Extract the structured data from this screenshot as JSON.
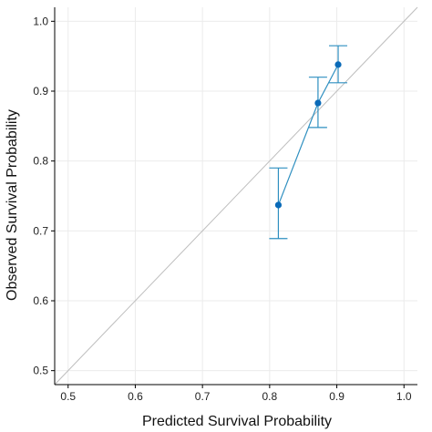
{
  "chart_data": {
    "type": "scatter",
    "xlabel": "Predicted Survival Probability",
    "ylabel": "Observed Survival Probability",
    "xlim": [
      0.48,
      1.02
    ],
    "ylim": [
      0.48,
      1.02
    ],
    "x_ticks": [
      0.5,
      0.6,
      0.7,
      0.8,
      0.9,
      1.0
    ],
    "x_tick_labels": [
      "0.5",
      "0.6",
      "0.7",
      "0.8",
      "0.9",
      "1.0"
    ],
    "y_ticks": [
      0.5,
      0.6,
      0.7,
      0.8,
      0.9,
      1.0
    ],
    "y_tick_labels": [
      "0.5",
      "0.6",
      "0.7",
      "0.8",
      "0.9",
      "1.0"
    ],
    "grid": true,
    "reference_line": {
      "from": [
        0.48,
        0.48
      ],
      "to": [
        1.02,
        1.02
      ],
      "color": "#bdbdbd"
    },
    "series": [
      {
        "color": "#2e8fc0",
        "point_color": "#0a6ab8",
        "points": [
          {
            "x": 0.813,
            "y": 0.737,
            "lower": 0.689,
            "upper": 0.79
          },
          {
            "x": 0.872,
            "y": 0.883,
            "lower": 0.848,
            "upper": 0.92
          },
          {
            "x": 0.902,
            "y": 0.938,
            "lower": 0.912,
            "upper": 0.965
          }
        ]
      }
    ]
  }
}
